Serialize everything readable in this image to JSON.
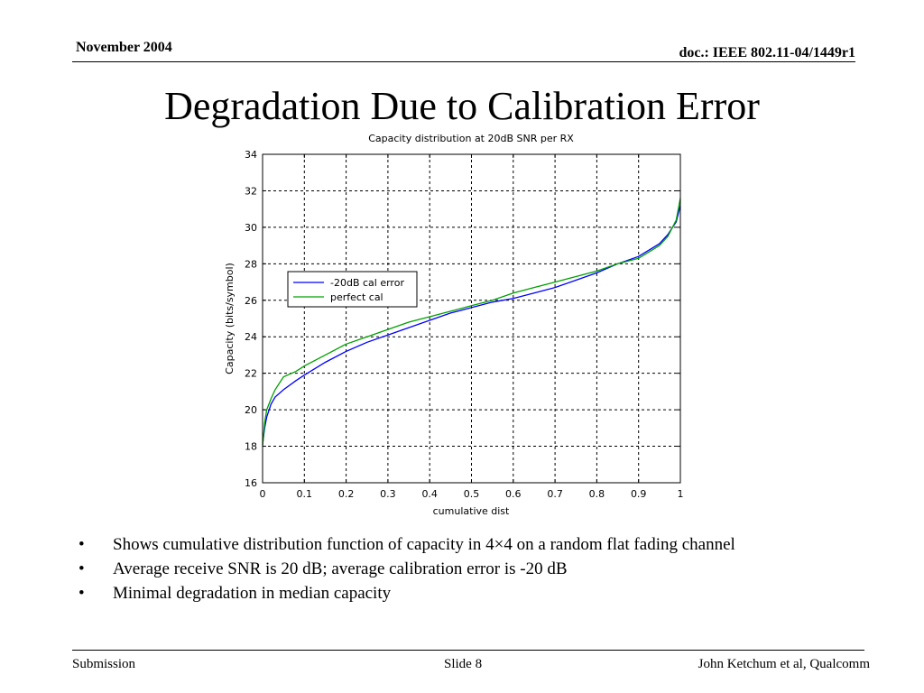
{
  "header": {
    "date": "November 2004",
    "doc": "doc.: IEEE 802.11-04/1449r1"
  },
  "slide": {
    "title": "Degradation Due to Calibration Error",
    "bullets": [
      "Shows cumulative distribution function of capacity in 4×4 on a random flat fading channel",
      "Average receive SNR is 20 dB; average calibration error is -20 dB",
      "Minimal degradation in median capacity"
    ],
    "bullet_glyph": "•"
  },
  "footer": {
    "left": "Submission",
    "center": "Slide 8",
    "right": "John Ketchum et al, Qualcomm"
  },
  "colors": {
    "series_cal_error": "#0000ff",
    "series_perfect": "#00a000"
  },
  "chart_data": {
    "type": "line",
    "title": "Capacity distribution at 20dB SNR per RX",
    "xlabel": "cumulative dist",
    "ylabel": "Capacity (bits/symbol)",
    "xlim": [
      0,
      1
    ],
    "ylim": [
      16,
      34
    ],
    "xticks": [
      "0",
      "0.1",
      "0.2",
      "0.3",
      "0.4",
      "0.5",
      "0.6",
      "0.7",
      "0.8",
      "0.9",
      "1"
    ],
    "yticks": [
      "16",
      "18",
      "20",
      "22",
      "24",
      "26",
      "28",
      "30",
      "32",
      "34"
    ],
    "grid": true,
    "legend_position": "upper-left",
    "series": [
      {
        "name": "-20dB cal error",
        "color": "#0000ff",
        "x": [
          0,
          0.005,
          0.01,
          0.02,
          0.03,
          0.05,
          0.08,
          0.1,
          0.15,
          0.2,
          0.25,
          0.3,
          0.35,
          0.4,
          0.45,
          0.5,
          0.55,
          0.6,
          0.65,
          0.7,
          0.75,
          0.8,
          0.85,
          0.9,
          0.95,
          0.97,
          0.99,
          1
        ],
        "y": [
          18.1,
          19.0,
          19.6,
          20.3,
          20.7,
          21.1,
          21.6,
          21.9,
          22.6,
          23.2,
          23.7,
          24.1,
          24.5,
          24.9,
          25.3,
          25.6,
          25.9,
          26.1,
          26.4,
          26.7,
          27.1,
          27.5,
          28.0,
          28.4,
          29.1,
          29.6,
          30.3,
          31.2
        ]
      },
      {
        "name": "perfect cal",
        "color": "#00a000",
        "x": [
          0,
          0.005,
          0.01,
          0.02,
          0.03,
          0.05,
          0.08,
          0.1,
          0.15,
          0.2,
          0.25,
          0.3,
          0.35,
          0.4,
          0.45,
          0.5,
          0.55,
          0.6,
          0.65,
          0.7,
          0.75,
          0.8,
          0.85,
          0.9,
          0.95,
          0.97,
          0.99,
          1
        ],
        "y": [
          18.0,
          19.3,
          20.0,
          20.6,
          21.1,
          21.8,
          22.1,
          22.4,
          23.0,
          23.6,
          24.0,
          24.4,
          24.8,
          25.1,
          25.4,
          25.7,
          26.0,
          26.4,
          26.7,
          27.0,
          27.3,
          27.6,
          28.0,
          28.3,
          29.0,
          29.5,
          30.4,
          31.6
        ]
      }
    ]
  }
}
